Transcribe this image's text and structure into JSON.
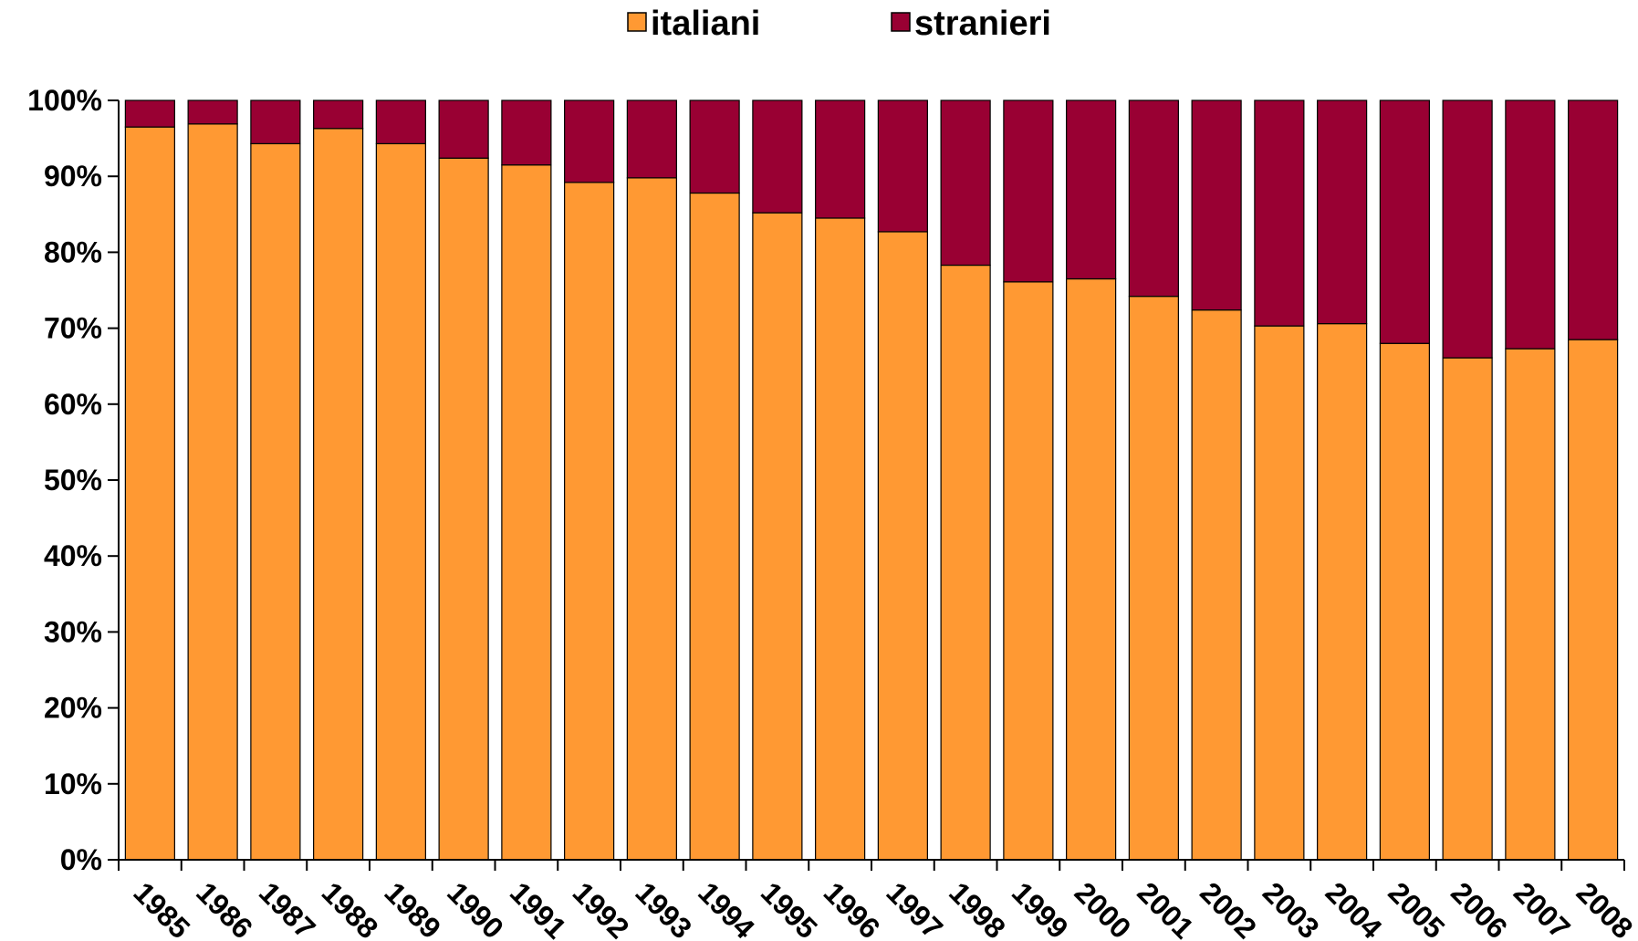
{
  "chart_data": {
    "type": "bar",
    "stacked": true,
    "percent_stacked": true,
    "categories": [
      "1985",
      "1986",
      "1987",
      "1988",
      "1989",
      "1990",
      "1991",
      "1992",
      "1993",
      "1994",
      "1995",
      "1996",
      "1997",
      "1998",
      "1999",
      "2000",
      "2001",
      "2002",
      "2003",
      "2004",
      "2005",
      "2006",
      "2007",
      "2008"
    ],
    "series": [
      {
        "name": "italiani",
        "color": "#FF9933",
        "values": [
          96.5,
          96.9,
          94.3,
          96.3,
          94.3,
          92.4,
          91.5,
          89.2,
          89.8,
          87.8,
          85.2,
          84.5,
          82.7,
          78.3,
          76.1,
          76.5,
          74.2,
          72.4,
          70.3,
          70.6,
          68.0,
          66.1,
          67.3,
          68.5
        ]
      },
      {
        "name": "stranieri",
        "color": "#990033",
        "values": [
          3.5,
          3.1,
          5.7,
          3.7,
          5.7,
          7.6,
          8.5,
          10.8,
          10.2,
          12.2,
          14.8,
          15.5,
          17.3,
          21.7,
          23.9,
          23.5,
          25.8,
          27.6,
          29.7,
          29.4,
          32.0,
          33.9,
          32.7,
          31.5
        ]
      }
    ],
    "y_ticks": [
      "0%",
      "10%",
      "20%",
      "30%",
      "40%",
      "50%",
      "60%",
      "70%",
      "80%",
      "90%",
      "100%"
    ],
    "ylim": [
      0,
      100
    ],
    "legend_position": "top-center",
    "grid": false,
    "title": "",
    "xlabel": "",
    "ylabel": ""
  }
}
